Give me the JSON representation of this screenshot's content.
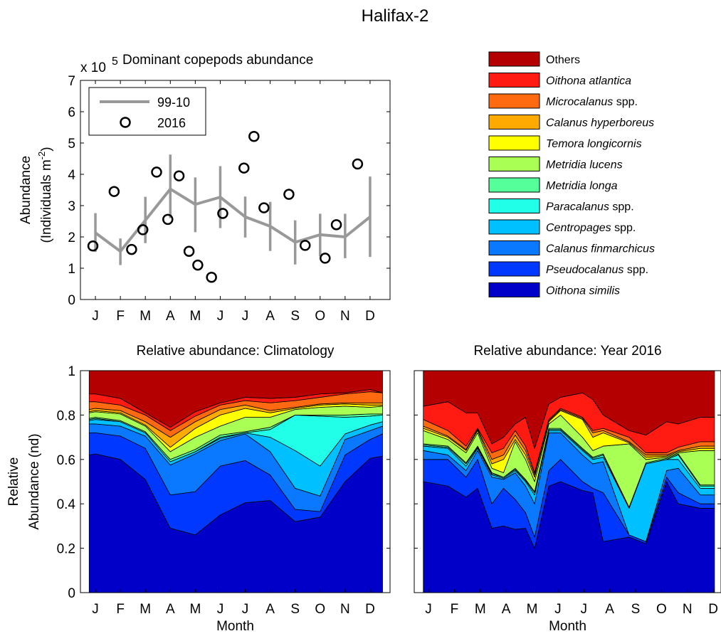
{
  "figure_title": "Halifax-2",
  "chart_data": [
    {
      "type": "line",
      "title": "Dominant copepods abundance",
      "exponent_label": "x 10",
      "exponent_sup": "5",
      "ylabel_line1": "Abundance",
      "ylabel_line2": "(Individuals m",
      "ylabel_sup": "-2",
      "ylabel_close": ")",
      "ylim": [
        0,
        7
      ],
      "yticks": [
        "0",
        "1",
        "2",
        "3",
        "4",
        "5",
        "6",
        "7"
      ],
      "categories": [
        "J",
        "F",
        "M",
        "A",
        "M",
        "J",
        "J",
        "A",
        "S",
        "O",
        "N",
        "D"
      ],
      "legend_position": "top-left",
      "series": [
        {
          "name": "99-10",
          "color": "#999999",
          "x": [
            1,
            2,
            3,
            4,
            5,
            6,
            7,
            8,
            9,
            10,
            11,
            12
          ],
          "values": [
            2.13,
            1.54,
            2.53,
            3.53,
            3.04,
            3.27,
            2.64,
            2.34,
            1.83,
            2.07,
            2.0,
            2.64
          ],
          "error_low": [
            1.52,
            1.1,
            1.8,
            2.6,
            2.15,
            2.28,
            1.98,
            1.55,
            1.12,
            1.38,
            1.32,
            1.36
          ],
          "error_high": [
            2.76,
            1.95,
            3.28,
            4.63,
            3.9,
            4.26,
            3.29,
            3.12,
            2.53,
            2.74,
            2.74,
            3.93
          ]
        },
        {
          "name": "2016",
          "color": "#000000",
          "x": [
            0.9,
            1.75,
            2.45,
            2.9,
            3.45,
            3.9,
            4.35,
            4.75,
            5.1,
            5.65,
            6.1,
            6.95,
            7.35,
            7.75,
            8.75,
            9.4,
            10.2,
            10.65,
            11.5
          ],
          "values": [
            1.71,
            3.45,
            1.6,
            2.23,
            4.07,
            2.56,
            3.95,
            1.54,
            1.1,
            0.71,
            2.75,
            4.2,
            5.21,
            2.93,
            3.36,
            1.73,
            1.32,
            2.39,
            4.33
          ]
        }
      ]
    },
    {
      "type": "area",
      "title": "Relative abundance: Climatology",
      "xlabel": "Month",
      "ylabel_line1": "Relative",
      "ylabel_line2": "Abundance (nd)",
      "ylim": [
        0,
        1
      ],
      "yticks": [
        "0",
        "0.2",
        "0.4",
        "0.6",
        "0.8",
        "1"
      ],
      "categories": [
        "J",
        "F",
        "M",
        "A",
        "M",
        "J",
        "J",
        "A",
        "S",
        "O",
        "N",
        "D"
      ],
      "x": [
        0.75,
        1,
        2,
        3,
        4,
        5,
        6,
        7,
        8,
        9,
        10,
        11,
        12,
        12.5
      ],
      "cumulative": true,
      "series_cumulative": [
        {
          "name": "Oithona similis",
          "values": [
            0.62,
            0.625,
            0.6,
            0.51,
            0.29,
            0.26,
            0.35,
            0.405,
            0.415,
            0.32,
            0.34,
            0.5,
            0.605,
            0.615
          ]
        },
        {
          "name": "Pseudocalanus spp.",
          "values": [
            0.72,
            0.72,
            0.705,
            0.65,
            0.44,
            0.455,
            0.57,
            0.595,
            0.53,
            0.375,
            0.365,
            0.62,
            0.69,
            0.715
          ]
        },
        {
          "name": "Calanus finmarchicus",
          "values": [
            0.76,
            0.76,
            0.75,
            0.705,
            0.575,
            0.625,
            0.685,
            0.715,
            0.635,
            0.47,
            0.435,
            0.69,
            0.73,
            0.75
          ]
        },
        {
          "name": "Centropages spp.",
          "values": [
            0.775,
            0.78,
            0.77,
            0.72,
            0.59,
            0.635,
            0.695,
            0.72,
            0.7,
            0.64,
            0.57,
            0.715,
            0.755,
            0.77
          ]
        },
        {
          "name": "Paracalanus spp.",
          "values": [
            0.78,
            0.785,
            0.77,
            0.72,
            0.59,
            0.635,
            0.7,
            0.72,
            0.735,
            0.8,
            0.795,
            0.79,
            0.795,
            0.8
          ]
        },
        {
          "name": "Metridia longa",
          "values": [
            0.785,
            0.79,
            0.775,
            0.725,
            0.6,
            0.645,
            0.71,
            0.725,
            0.745,
            0.8,
            0.8,
            0.8,
            0.805,
            0.805
          ]
        },
        {
          "name": "Metridia lucens",
          "values": [
            0.81,
            0.815,
            0.805,
            0.75,
            0.635,
            0.7,
            0.75,
            0.79,
            0.79,
            0.825,
            0.835,
            0.84,
            0.835,
            0.84
          ]
        },
        {
          "name": "Temora longicornis",
          "values": [
            0.815,
            0.82,
            0.81,
            0.755,
            0.655,
            0.74,
            0.8,
            0.83,
            0.81,
            0.83,
            0.845,
            0.85,
            0.845,
            0.845
          ]
        },
        {
          "name": "Calanus hyperboreus",
          "values": [
            0.825,
            0.83,
            0.82,
            0.77,
            0.7,
            0.77,
            0.825,
            0.845,
            0.82,
            0.835,
            0.85,
            0.855,
            0.855,
            0.855
          ]
        },
        {
          "name": "Microcalanus spp.",
          "values": [
            0.86,
            0.86,
            0.845,
            0.8,
            0.73,
            0.795,
            0.845,
            0.865,
            0.855,
            0.865,
            0.88,
            0.895,
            0.905,
            0.9
          ]
        },
        {
          "name": "Oithona atlantica",
          "values": [
            0.895,
            0.895,
            0.875,
            0.81,
            0.745,
            0.815,
            0.855,
            0.88,
            0.875,
            0.88,
            0.895,
            0.9,
            0.915,
            0.9
          ]
        },
        {
          "name": "Others",
          "values": [
            1,
            1,
            1,
            1,
            1,
            1,
            1,
            1,
            1,
            1,
            1,
            1,
            1,
            1
          ]
        }
      ]
    },
    {
      "type": "area",
      "title": "Relative abundance: Year 2016",
      "xlabel": "Month",
      "ylim": [
        0,
        1
      ],
      "categories": [
        "J",
        "F",
        "M",
        "A",
        "M",
        "J",
        "J",
        "A",
        "S",
        "O",
        "N",
        "D"
      ],
      "x": [
        0.8,
        1.75,
        2.45,
        2.9,
        3.45,
        3.9,
        4.35,
        4.75,
        5.1,
        5.65,
        6.1,
        6.95,
        7.35,
        7.75,
        8.75,
        9.4,
        10.2,
        10.65,
        11.5,
        12.05
      ],
      "cumulative": true,
      "series_cumulative": [
        {
          "name": "Oithona similis",
          "values": [
            0.5,
            0.48,
            0.43,
            0.47,
            0.29,
            0.3,
            0.285,
            0.29,
            0.2,
            0.48,
            0.5,
            0.46,
            0.45,
            0.23,
            0.25,
            0.22,
            0.5,
            0.4,
            0.38,
            0.38
          ]
        },
        {
          "name": "Pseudocalanus spp.",
          "values": [
            0.6,
            0.6,
            0.52,
            0.6,
            0.4,
            0.47,
            0.42,
            0.36,
            0.25,
            0.55,
            0.6,
            0.5,
            0.47,
            0.45,
            0.26,
            0.23,
            0.52,
            0.45,
            0.4,
            0.4
          ]
        },
        {
          "name": "Calanus finmarchicus",
          "values": [
            0.64,
            0.62,
            0.55,
            0.64,
            0.52,
            0.51,
            0.54,
            0.48,
            0.4,
            0.72,
            0.72,
            0.62,
            0.58,
            0.59,
            0.26,
            0.23,
            0.55,
            0.56,
            0.44,
            0.44
          ]
        },
        {
          "name": "Centropages spp.",
          "values": [
            0.66,
            0.65,
            0.57,
            0.65,
            0.53,
            0.515,
            0.55,
            0.5,
            0.44,
            0.73,
            0.73,
            0.64,
            0.6,
            0.61,
            0.38,
            0.58,
            0.6,
            0.6,
            0.47,
            0.47
          ]
        },
        {
          "name": "Paracalanus spp.",
          "values": [
            0.665,
            0.655,
            0.58,
            0.655,
            0.535,
            0.52,
            0.555,
            0.505,
            0.45,
            0.735,
            0.735,
            0.645,
            0.605,
            0.62,
            0.38,
            0.58,
            0.6,
            0.62,
            0.48,
            0.48
          ]
        },
        {
          "name": "Metridia longa",
          "values": [
            0.67,
            0.66,
            0.585,
            0.66,
            0.54,
            0.52,
            0.56,
            0.51,
            0.455,
            0.74,
            0.74,
            0.65,
            0.61,
            0.625,
            0.385,
            0.585,
            0.605,
            0.625,
            0.485,
            0.485
          ]
        },
        {
          "name": "Metridia lucens",
          "values": [
            0.73,
            0.69,
            0.63,
            0.72,
            0.56,
            0.54,
            0.68,
            0.6,
            0.5,
            0.76,
            0.8,
            0.7,
            0.64,
            0.66,
            0.67,
            0.6,
            0.61,
            0.63,
            0.64,
            0.64
          ]
        },
        {
          "name": "Temora longicornis",
          "values": [
            0.74,
            0.7,
            0.64,
            0.73,
            0.58,
            0.6,
            0.69,
            0.62,
            0.52,
            0.77,
            0.82,
            0.78,
            0.7,
            0.72,
            0.675,
            0.61,
            0.615,
            0.635,
            0.65,
            0.65
          ]
        },
        {
          "name": "Calanus hyperboreus",
          "values": [
            0.75,
            0.705,
            0.645,
            0.735,
            0.6,
            0.62,
            0.71,
            0.64,
            0.53,
            0.775,
            0.825,
            0.785,
            0.72,
            0.73,
            0.68,
            0.62,
            0.62,
            0.64,
            0.66,
            0.66
          ]
        },
        {
          "name": "Microcalanus spp.",
          "values": [
            0.78,
            0.73,
            0.66,
            0.74,
            0.63,
            0.65,
            0.73,
            0.66,
            0.54,
            0.78,
            0.83,
            0.79,
            0.73,
            0.74,
            0.7,
            0.63,
            0.63,
            0.655,
            0.68,
            0.68
          ]
        },
        {
          "name": "Oithona atlantica",
          "values": [
            0.84,
            0.86,
            0.81,
            0.81,
            0.67,
            0.7,
            0.76,
            0.79,
            0.65,
            0.85,
            0.88,
            0.9,
            0.87,
            0.8,
            0.73,
            0.71,
            0.77,
            0.76,
            0.79,
            0.79
          ]
        },
        {
          "name": "Others",
          "values": [
            1,
            1,
            1,
            1,
            1,
            1,
            1,
            1,
            1,
            1,
            1,
            1,
            1,
            1,
            1,
            1,
            1,
            1,
            1,
            1
          ]
        }
      ]
    }
  ],
  "legend": {
    "position": "top-right",
    "items": [
      {
        "label": "Others",
        "italic": false,
        "suffix": "",
        "color": "#B40000"
      },
      {
        "label": "Oithona atlantica",
        "italic": true,
        "suffix": "",
        "color": "#FF1A12"
      },
      {
        "label": "Microcalanus",
        "italic": true,
        "suffix": " spp.",
        "color": "#FF6A10"
      },
      {
        "label": "Calanus hyperboreus",
        "italic": true,
        "suffix": "",
        "color": "#FFAA00"
      },
      {
        "label": "Temora longicornis",
        "italic": true,
        "suffix": "",
        "color": "#FFFF00"
      },
      {
        "label": "Metridia lucens",
        "italic": true,
        "suffix": "",
        "color": "#AAFF55"
      },
      {
        "label": "Metridia longa",
        "italic": true,
        "suffix": "",
        "color": "#55FF99"
      },
      {
        "label": "Paracalanus",
        "italic": true,
        "suffix": " spp.",
        "color": "#22FFE8"
      },
      {
        "label": "Centropages",
        "italic": true,
        "suffix": " spp.",
        "color": "#00C0FF"
      },
      {
        "label": "Calanus finmarchicus",
        "italic": true,
        "suffix": "",
        "color": "#0A78FF"
      },
      {
        "label": "Pseudocalanus",
        "italic": true,
        "suffix": " spp.",
        "color": "#0038FF"
      },
      {
        "label": "Oithona similis",
        "italic": true,
        "suffix": "",
        "color": "#0000C8"
      }
    ]
  }
}
